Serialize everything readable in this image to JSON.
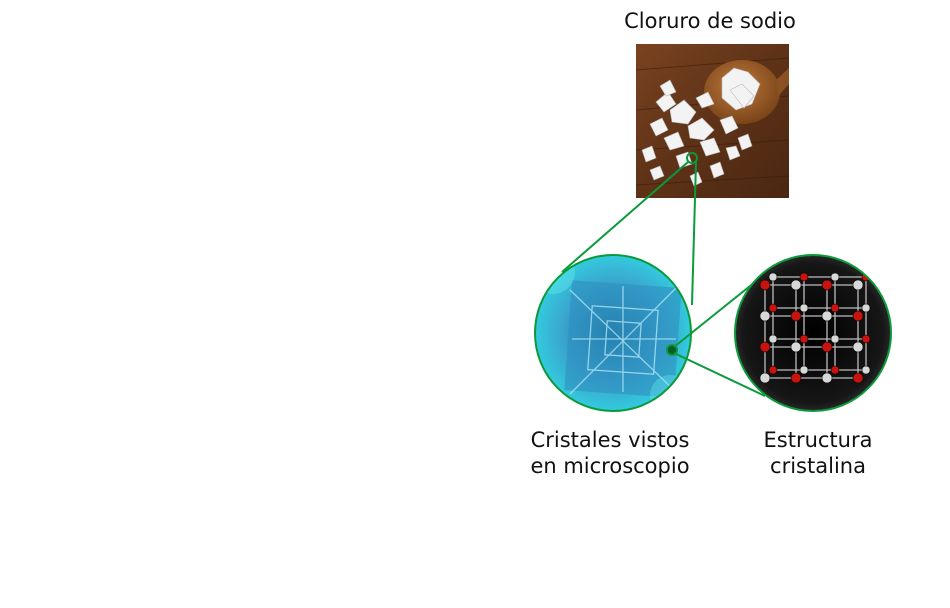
{
  "title": "Cloruro de sodio",
  "microscope_label": {
    "line1": "Cristales vistos",
    "line2": "en microscopio"
  },
  "crystal_label": {
    "line1": "Estructura",
    "line2": "cristalina"
  },
  "colors": {
    "connector": "#0a9a3a",
    "wood": "#6b3a1c",
    "microscope": "#3ab7d8",
    "crystal_bg": "#1a1a1a",
    "ion_red": "#c8140e",
    "ion_white": "#d8d8d8"
  }
}
